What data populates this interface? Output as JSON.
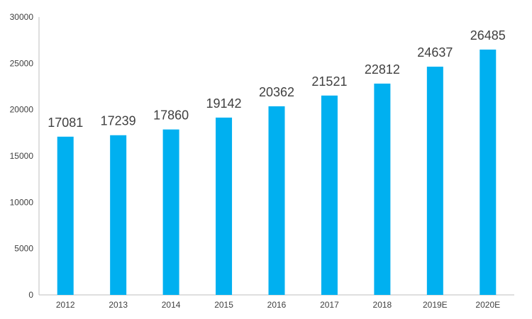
{
  "chart_data": {
    "type": "bar",
    "categories": [
      "2012",
      "2013",
      "2014",
      "2015",
      "2016",
      "2017",
      "2018",
      "2019E",
      "2020E"
    ],
    "values": [
      17081,
      17239,
      17860,
      19142,
      20362,
      21521,
      22812,
      24637,
      26485
    ],
    "data_labels": [
      "17081",
      "17239",
      "17860",
      "19142",
      "20362",
      "21521",
      "22812",
      "24637",
      "26485"
    ],
    "yticks": [
      0,
      5000,
      10000,
      15000,
      20000,
      25000,
      30000
    ],
    "ytick_labels": [
      "0",
      "5000",
      "10000",
      "15000",
      "20000",
      "25000",
      "30000"
    ],
    "title": "",
    "xlabel": "",
    "ylabel": "",
    "ylim": [
      0,
      30000
    ],
    "grid": false,
    "legend": "none",
    "bar_color": "#00B0F0",
    "axis_color": "#BFBFBF",
    "text_color": "#404040"
  }
}
